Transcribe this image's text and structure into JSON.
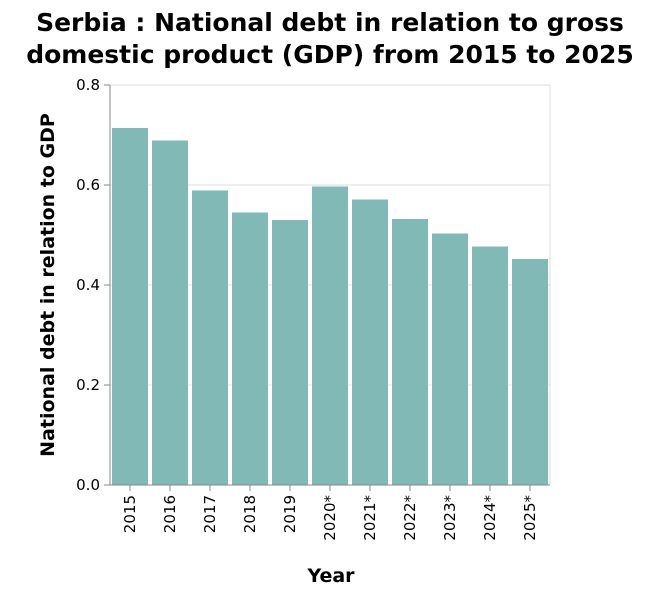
{
  "chart_data": {
    "type": "bar",
    "title_lines": [
      "Serbia : National debt in relation to gross",
      "domestic product (GDP) from 2015 to 2025"
    ],
    "xlabel": "Year",
    "ylabel": "National debt in relation to GDP",
    "categories": [
      "2015",
      "2016",
      "2017",
      "2018",
      "2019",
      "2020*",
      "2021*",
      "2022*",
      "2023*",
      "2024*",
      "2025*"
    ],
    "values": [
      0.714,
      0.689,
      0.589,
      0.545,
      0.53,
      0.597,
      0.571,
      0.532,
      0.503,
      0.477,
      0.452
    ],
    "ylim": [
      0,
      0.8
    ],
    "yticks": [
      "0.0",
      "0.2",
      "0.4",
      "0.6",
      "0.8"
    ],
    "grid": true,
    "bar_color": "#80b9b5"
  }
}
